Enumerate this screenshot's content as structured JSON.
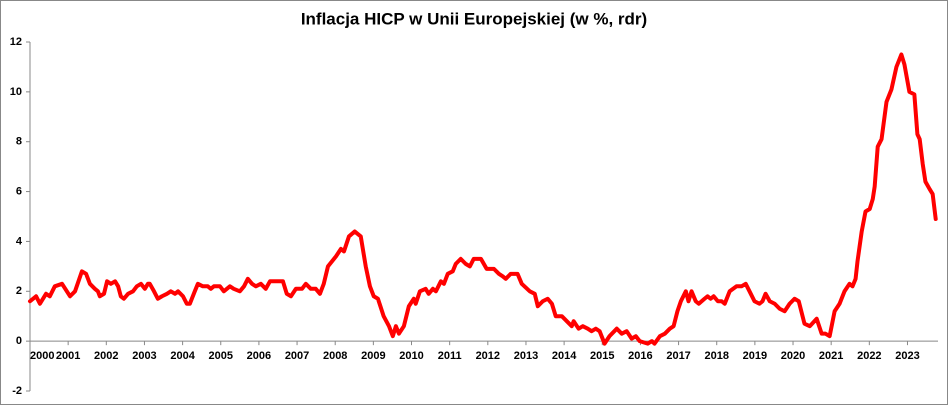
{
  "chart_data": {
    "type": "line",
    "title": "Inflacja HICP w Unii Europejskiej (w %, rdr)",
    "color": "#ff0000",
    "xlim": [
      2000,
      2023.8
    ],
    "xticks": [
      2000,
      2001,
      2002,
      2003,
      2004,
      2005,
      2006,
      2007,
      2008,
      2009,
      2010,
      2011,
      2012,
      2013,
      2014,
      2015,
      2016,
      2017,
      2018,
      2019,
      2020,
      2021,
      2022,
      2023
    ],
    "ylim": [
      -2,
      12
    ],
    "yticks": [
      -2,
      0,
      2,
      4,
      6,
      8,
      10,
      12
    ],
    "grid": false,
    "x": [
      2000.0,
      2000.16,
      2000.26,
      2000.42,
      2000.52,
      2000.65,
      2000.84,
      2001.05,
      2001.18,
      2001.36,
      2001.47,
      2001.57,
      2001.7,
      2001.78,
      2001.83,
      2001.94,
      2002.02,
      2002.12,
      2002.23,
      2002.31,
      2002.38,
      2002.46,
      2002.57,
      2002.7,
      2002.8,
      2002.91,
      2003.01,
      2003.09,
      2003.14,
      2003.25,
      2003.35,
      2003.46,
      2003.59,
      2003.69,
      2003.8,
      2003.88,
      2004.01,
      2004.11,
      2004.19,
      2004.32,
      2004.4,
      2004.53,
      2004.66,
      2004.74,
      2004.82,
      2004.98,
      2005.08,
      2005.24,
      2005.34,
      2005.5,
      2005.61,
      2005.71,
      2005.82,
      2005.92,
      2006.05,
      2006.18,
      2006.29,
      2006.5,
      2006.63,
      2006.73,
      2006.84,
      2006.97,
      2007.13,
      2007.23,
      2007.36,
      2007.49,
      2007.6,
      2007.7,
      2007.81,
      2008.02,
      2008.15,
      2008.23,
      2008.36,
      2008.51,
      2008.67,
      2008.8,
      2008.91,
      2009.01,
      2009.12,
      2009.27,
      2009.41,
      2009.51,
      2009.59,
      2009.67,
      2009.8,
      2009.93,
      2010.06,
      2010.11,
      2010.22,
      2010.37,
      2010.45,
      2010.56,
      2010.64,
      2010.77,
      2010.85,
      2010.95,
      2011.08,
      2011.16,
      2011.29,
      2011.42,
      2011.53,
      2011.63,
      2011.82,
      2011.97,
      2012.16,
      2012.29,
      2012.39,
      2012.47,
      2012.6,
      2012.78,
      2012.89,
      2013.1,
      2013.23,
      2013.31,
      2013.44,
      2013.57,
      2013.68,
      2013.78,
      2013.94,
      2014.07,
      2014.2,
      2014.25,
      2014.38,
      2014.49,
      2014.62,
      2014.72,
      2014.83,
      2014.93,
      2015.06,
      2015.19,
      2015.38,
      2015.51,
      2015.64,
      2015.77,
      2015.88,
      2015.98,
      2016.19,
      2016.3,
      2016.37,
      2016.51,
      2016.64,
      2016.77,
      2016.87,
      2016.97,
      2017.06,
      2017.19,
      2017.26,
      2017.34,
      2017.45,
      2017.53,
      2017.68,
      2017.76,
      2017.84,
      2017.92,
      2018.03,
      2018.13,
      2018.21,
      2018.34,
      2018.52,
      2018.65,
      2018.76,
      2018.86,
      2018.99,
      2019.12,
      2019.2,
      2019.28,
      2019.39,
      2019.52,
      2019.65,
      2019.78,
      2019.91,
      2020.04,
      2020.15,
      2020.3,
      2020.44,
      2020.62,
      2020.75,
      2020.85,
      2020.96,
      2021.09,
      2021.22,
      2021.35,
      2021.48,
      2021.56,
      2021.64,
      2021.69,
      2021.8,
      2021.9,
      2022.01,
      2022.09,
      2022.14,
      2022.22,
      2022.32,
      2022.45,
      2022.58,
      2022.71,
      2022.84,
      2022.92,
      2023.05,
      2023.18,
      2023.26,
      2023.32,
      2023.4,
      2023.47,
      2023.58,
      2023.66,
      2023.74
    ],
    "values": [
      1.6,
      1.8,
      1.5,
      1.9,
      1.8,
      2.2,
      2.3,
      1.8,
      2.0,
      2.8,
      2.7,
      2.3,
      2.1,
      2.0,
      1.8,
      1.9,
      2.4,
      2.3,
      2.4,
      2.2,
      1.8,
      1.7,
      1.9,
      2.0,
      2.2,
      2.3,
      2.1,
      2.3,
      2.3,
      2.0,
      1.7,
      1.8,
      1.9,
      2.0,
      1.9,
      2.0,
      1.8,
      1.5,
      1.5,
      2.0,
      2.3,
      2.2,
      2.2,
      2.1,
      2.2,
      2.2,
      2.0,
      2.2,
      2.1,
      2.0,
      2.2,
      2.5,
      2.3,
      2.2,
      2.3,
      2.1,
      2.4,
      2.4,
      2.4,
      1.9,
      1.8,
      2.1,
      2.1,
      2.3,
      2.1,
      2.1,
      1.9,
      2.3,
      3.0,
      3.4,
      3.7,
      3.6,
      4.2,
      4.4,
      4.2,
      3.0,
      2.2,
      1.8,
      1.7,
      1.0,
      0.6,
      0.2,
      0.6,
      0.3,
      0.6,
      1.4,
      1.7,
      1.5,
      2.0,
      2.1,
      1.9,
      2.1,
      2.0,
      2.4,
      2.3,
      2.7,
      2.8,
      3.1,
      3.3,
      3.1,
      3.0,
      3.3,
      3.3,
      2.9,
      2.9,
      2.7,
      2.6,
      2.5,
      2.7,
      2.7,
      2.3,
      2.0,
      1.9,
      1.4,
      1.6,
      1.7,
      1.5,
      1.0,
      1.0,
      0.8,
      0.6,
      0.8,
      0.5,
      0.6,
      0.5,
      0.4,
      0.5,
      0.4,
      -0.1,
      0.2,
      0.5,
      0.3,
      0.4,
      0.1,
      0.2,
      0.0,
      -0.1,
      0.0,
      -0.1,
      0.2,
      0.3,
      0.5,
      0.6,
      1.2,
      1.6,
      2.0,
      1.6,
      2.0,
      1.6,
      1.5,
      1.7,
      1.8,
      1.7,
      1.8,
      1.6,
      1.6,
      1.5,
      2.0,
      2.2,
      2.2,
      2.3,
      2.0,
      1.6,
      1.5,
      1.6,
      1.9,
      1.6,
      1.5,
      1.3,
      1.2,
      1.5,
      1.7,
      1.6,
      0.7,
      0.6,
      0.9,
      0.3,
      0.3,
      0.2,
      1.2,
      1.5,
      2.0,
      2.3,
      2.2,
      2.5,
      3.2,
      4.4,
      5.2,
      5.3,
      5.7,
      6.2,
      7.8,
      8.1,
      9.6,
      10.1,
      11.0,
      11.5,
      11.1,
      10.0,
      9.9,
      8.3,
      8.1,
      7.1,
      6.4,
      6.1,
      5.9,
      4.9
    ]
  }
}
